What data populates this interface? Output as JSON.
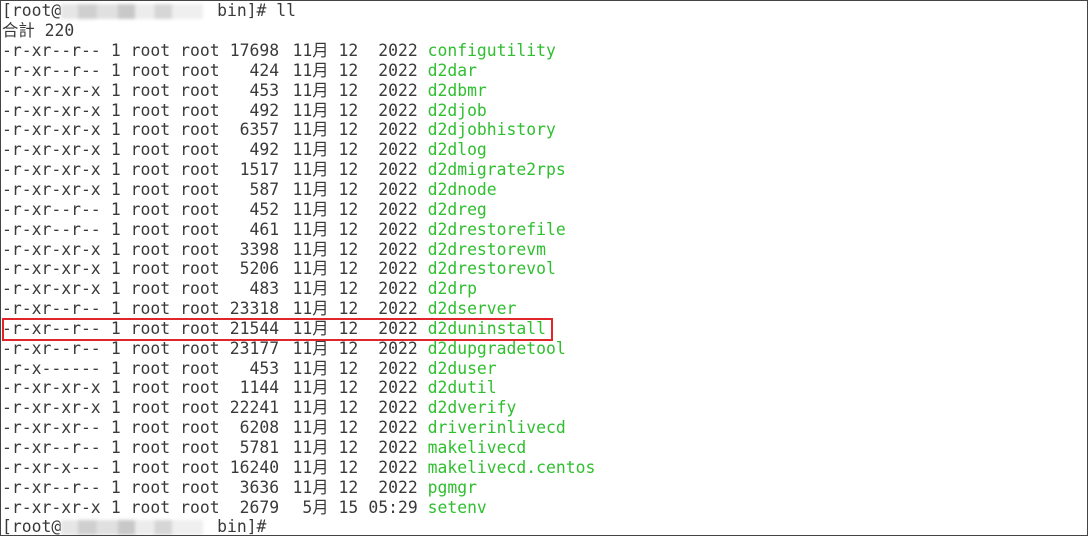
{
  "prompt_user": "[root@",
  "prompt_dir": " bin]#",
  "command": " ll",
  "total_label": "合計",
  "total_value": "220",
  "highlight_color": "#e0252b",
  "filename_color": "#2fbf2f",
  "highlighted_file": "d2duninstall",
  "rows": [
    {
      "perm": "-r-xr--r--",
      "links": "1",
      "owner": "root",
      "group": "root",
      "size": "17698",
      "month": "11月",
      "day": "12",
      "time": "2022",
      "name": "configutility"
    },
    {
      "perm": "-r-xr--r--",
      "links": "1",
      "owner": "root",
      "group": "root",
      "size": "424",
      "month": "11月",
      "day": "12",
      "time": "2022",
      "name": "d2dar"
    },
    {
      "perm": "-r-xr-xr-x",
      "links": "1",
      "owner": "root",
      "group": "root",
      "size": "453",
      "month": "11月",
      "day": "12",
      "time": "2022",
      "name": "d2dbmr"
    },
    {
      "perm": "-r-xr-xr-x",
      "links": "1",
      "owner": "root",
      "group": "root",
      "size": "492",
      "month": "11月",
      "day": "12",
      "time": "2022",
      "name": "d2djob"
    },
    {
      "perm": "-r-xr-xr-x",
      "links": "1",
      "owner": "root",
      "group": "root",
      "size": "6357",
      "month": "11月",
      "day": "12",
      "time": "2022",
      "name": "d2djobhistory"
    },
    {
      "perm": "-r-xr-xr-x",
      "links": "1",
      "owner": "root",
      "group": "root",
      "size": "492",
      "month": "11月",
      "day": "12",
      "time": "2022",
      "name": "d2dlog"
    },
    {
      "perm": "-r-xr-xr-x",
      "links": "1",
      "owner": "root",
      "group": "root",
      "size": "1517",
      "month": "11月",
      "day": "12",
      "time": "2022",
      "name": "d2dmigrate2rps"
    },
    {
      "perm": "-r-xr-xr-x",
      "links": "1",
      "owner": "root",
      "group": "root",
      "size": "587",
      "month": "11月",
      "day": "12",
      "time": "2022",
      "name": "d2dnode"
    },
    {
      "perm": "-r-xr--r--",
      "links": "1",
      "owner": "root",
      "group": "root",
      "size": "452",
      "month": "11月",
      "day": "12",
      "time": "2022",
      "name": "d2dreg"
    },
    {
      "perm": "-r-xr--r--",
      "links": "1",
      "owner": "root",
      "group": "root",
      "size": "461",
      "month": "11月",
      "day": "12",
      "time": "2022",
      "name": "d2drestorefile"
    },
    {
      "perm": "-r-xr-xr-x",
      "links": "1",
      "owner": "root",
      "group": "root",
      "size": "3398",
      "month": "11月",
      "day": "12",
      "time": "2022",
      "name": "d2drestorevm"
    },
    {
      "perm": "-r-xr-xr-x",
      "links": "1",
      "owner": "root",
      "group": "root",
      "size": "5206",
      "month": "11月",
      "day": "12",
      "time": "2022",
      "name": "d2drestorevol"
    },
    {
      "perm": "-r-xr-xr-x",
      "links": "1",
      "owner": "root",
      "group": "root",
      "size": "483",
      "month": "11月",
      "day": "12",
      "time": "2022",
      "name": "d2drp"
    },
    {
      "perm": "-r-xr--r--",
      "links": "1",
      "owner": "root",
      "group": "root",
      "size": "23318",
      "month": "11月",
      "day": "12",
      "time": "2022",
      "name": "d2dserver"
    },
    {
      "perm": "-r-xr--r--",
      "links": "1",
      "owner": "root",
      "group": "root",
      "size": "21544",
      "month": "11月",
      "day": "12",
      "time": "2022",
      "name": "d2duninstall"
    },
    {
      "perm": "-r-xr--r--",
      "links": "1",
      "owner": "root",
      "group": "root",
      "size": "23177",
      "month": "11月",
      "day": "12",
      "time": "2022",
      "name": "d2dupgradetool"
    },
    {
      "perm": "-r-x------",
      "links": "1",
      "owner": "root",
      "group": "root",
      "size": "453",
      "month": "11月",
      "day": "12",
      "time": "2022",
      "name": "d2duser"
    },
    {
      "perm": "-r-xr-xr-x",
      "links": "1",
      "owner": "root",
      "group": "root",
      "size": "1144",
      "month": "11月",
      "day": "12",
      "time": "2022",
      "name": "d2dutil"
    },
    {
      "perm": "-r-xr-xr-x",
      "links": "1",
      "owner": "root",
      "group": "root",
      "size": "22241",
      "month": "11月",
      "day": "12",
      "time": "2022",
      "name": "d2dverify"
    },
    {
      "perm": "-r-xr-xr--",
      "links": "1",
      "owner": "root",
      "group": "root",
      "size": "6208",
      "month": "11月",
      "day": "12",
      "time": "2022",
      "name": "driverinlivecd"
    },
    {
      "perm": "-r-xr--r--",
      "links": "1",
      "owner": "root",
      "group": "root",
      "size": "5781",
      "month": "11月",
      "day": "12",
      "time": "2022",
      "name": "makelivecd"
    },
    {
      "perm": "-r-xr-x---",
      "links": "1",
      "owner": "root",
      "group": "root",
      "size": "16240",
      "month": "11月",
      "day": "12",
      "time": "2022",
      "name": "makelivecd.centos"
    },
    {
      "perm": "-r-xr--r--",
      "links": "1",
      "owner": "root",
      "group": "root",
      "size": "3636",
      "month": "11月",
      "day": "12",
      "time": "2022",
      "name": "pgmgr"
    },
    {
      "perm": "-r-xr-xr-x",
      "links": "1",
      "owner": "root",
      "group": "root",
      "size": "2679",
      "month": "5月",
      "day": "15",
      "time": "05:29",
      "name": "setenv"
    }
  ]
}
